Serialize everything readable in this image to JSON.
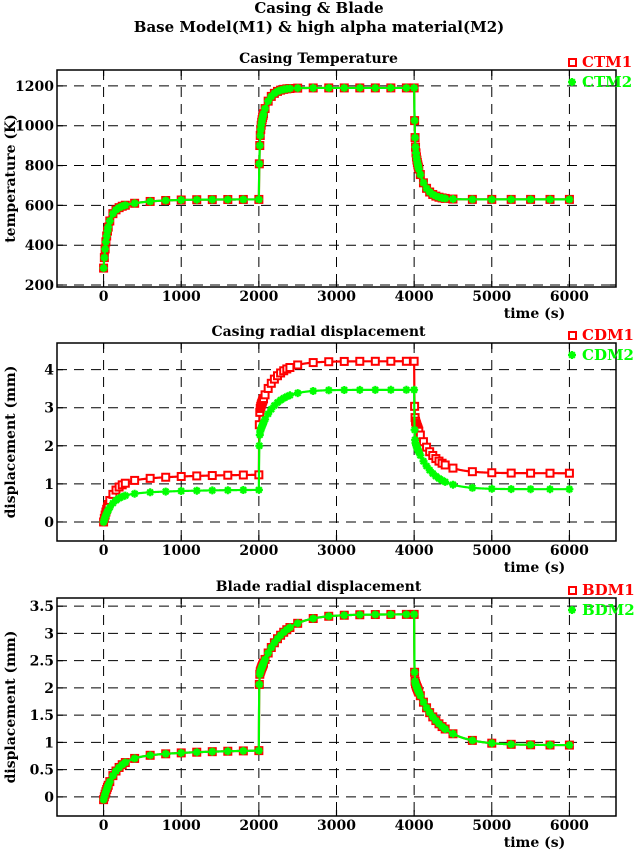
{
  "figure": {
    "title_line1": "Casing & Blade",
    "title_line2": "Base Model(M1) & high alpha material(M2)",
    "colors": {
      "series1": "#ff0000",
      "series2": "#00ff00",
      "axes": "#000000"
    }
  },
  "chart_data": [
    {
      "type": "line",
      "title": "Casing Temperature",
      "xlabel": "time (s)",
      "ylabel": "temperature (K)",
      "xlim": [
        -600,
        6600
      ],
      "ylim": [
        190,
        1280
      ],
      "xticks": [
        0,
        1000,
        2000,
        3000,
        4000,
        5000,
        6000
      ],
      "xtick_labels": [
        "0",
        "1000",
        "2000",
        "3000",
        "4000",
        "5000",
        "6000"
      ],
      "yticks": [
        200,
        400,
        600,
        800,
        1000,
        1200
      ],
      "ytick_labels": [
        "200",
        "400",
        "600",
        "800",
        "1000",
        "1200"
      ],
      "grid": true,
      "legend_position": "top-right-outside",
      "series": [
        {
          "name": "CTM1",
          "color": "#ff0000",
          "marker": "square",
          "params": {
            "start": 285,
            "level1": 630,
            "level2": 1190,
            "level3": 630,
            "tau": 90,
            "early": 8
          }
        },
        {
          "name": "CTM2",
          "color": "#00ff00",
          "marker": "star",
          "params": {
            "start": 285,
            "level1": 630,
            "level2": 1190,
            "level3": 630,
            "tau": 90,
            "early": 8
          }
        }
      ]
    },
    {
      "type": "line",
      "title": "Casing radial displacement",
      "xlabel": "time (s)",
      "ylabel": "displacement (mm)",
      "xlim": [
        -600,
        6600
      ],
      "ylim": [
        -0.5,
        4.7
      ],
      "xticks": [
        0,
        1000,
        2000,
        3000,
        4000,
        5000,
        6000
      ],
      "xtick_labels": [
        "0",
        "1000",
        "2000",
        "3000",
        "4000",
        "5000",
        "6000"
      ],
      "yticks": [
        0,
        1,
        2,
        3,
        4
      ],
      "ytick_labels": [
        "0",
        "1",
        "2",
        "3",
        "4"
      ],
      "grid": true,
      "legend_position": "top-right-outside",
      "series": [
        {
          "name": "CDM1",
          "color": "#ff0000",
          "marker": "square",
          "params": {
            "start": 0,
            "level1": 1.25,
            "level2": 4.22,
            "level3": 1.28,
            "tau": 190,
            "early": 4
          }
        },
        {
          "name": "CDM2",
          "color": "#00ff00",
          "marker": "star",
          "params": {
            "start": 0,
            "level1": 0.85,
            "level2": 3.47,
            "level3": 0.86,
            "tau": 190,
            "early": 4
          }
        }
      ]
    },
    {
      "type": "line",
      "title": "Blade radial displacement",
      "xlabel": "time (s)",
      "ylabel": "displacement (mm)",
      "xlim": [
        -600,
        6600
      ],
      "ylim": [
        -0.35,
        3.65
      ],
      "xticks": [
        0,
        1000,
        2000,
        3000,
        4000,
        5000,
        6000
      ],
      "xtick_labels": [
        "0",
        "1000",
        "2000",
        "3000",
        "4000",
        "5000",
        "6000"
      ],
      "yticks": [
        0,
        0.5,
        1,
        1.5,
        2,
        2.5,
        3,
        3.5
      ],
      "ytick_labels": [
        "0",
        "0.5",
        "1",
        "1.5",
        "2",
        "2.5",
        "3",
        "3.5"
      ],
      "grid": true,
      "legend_position": "top-right-outside",
      "series": [
        {
          "name": "BDM1",
          "color": "#ff0000",
          "marker": "square",
          "params": {
            "start": -0.05,
            "level1": 0.87,
            "level2": 3.35,
            "level3": 0.95,
            "tau": 260,
            "early": 3
          }
        },
        {
          "name": "BDM2",
          "color": "#00ff00",
          "marker": "star",
          "params": {
            "start": -0.05,
            "level1": 0.87,
            "level2": 3.35,
            "level3": 0.95,
            "tau": 260,
            "early": 3
          }
        }
      ]
    }
  ]
}
